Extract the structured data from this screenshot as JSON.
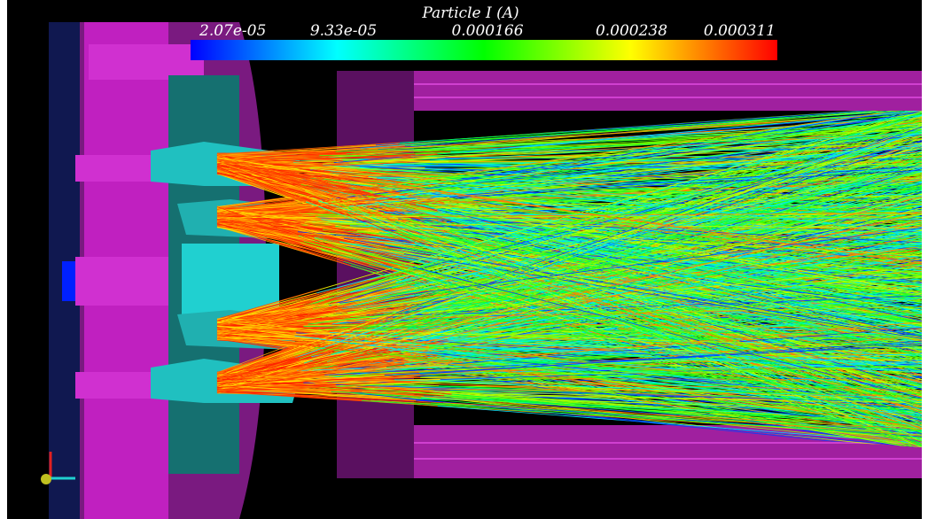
{
  "colorbar": {
    "title": "Particle I (A)",
    "labels": [
      "2.07e-05",
      "9.33e-05",
      "0.000166",
      "0.000238",
      "0.000311"
    ]
  }
}
